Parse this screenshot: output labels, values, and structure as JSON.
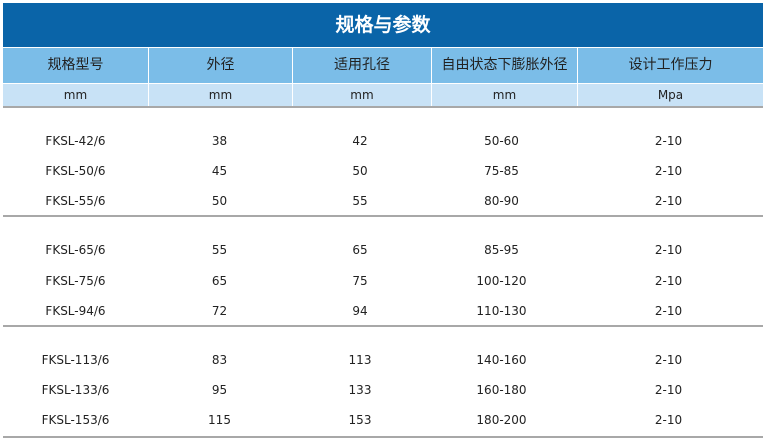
{
  "title": "规格与参数",
  "headers": [
    "规格型号",
    "外径",
    "适用孔径",
    "自由状态下膨胀外径",
    "设计工作压力"
  ],
  "units": [
    "mm",
    "mm",
    "mm",
    "mm",
    "Mpa"
  ],
  "groups": [
    [
      [
        "FKSL-42/6",
        "38",
        "42",
        "50-60",
        "2-10"
      ],
      [
        "FKSL-50/6",
        "45",
        "50",
        "75-85",
        "2-10"
      ],
      [
        "FKSL-55/6",
        "50",
        "55",
        "80-90",
        "2-10"
      ]
    ],
    [
      [
        "FKSL-65/6",
        "55",
        "65",
        "85-95",
        "2-10"
      ],
      [
        "FKSL-75/6",
        "65",
        "75",
        "100-120",
        "2-10"
      ],
      [
        "FKSL-94/6",
        "72",
        "94",
        "110-130",
        "2-10"
      ]
    ],
    [
      [
        "FKSL-113/6",
        "83",
        "113",
        "140-160",
        "2-10"
      ],
      [
        "FKSL-133/6",
        "95",
        "133",
        "160-180",
        "2-10"
      ],
      [
        "FKSL-153/6",
        "115",
        "153",
        "180-200",
        "2-10"
      ]
    ]
  ]
}
